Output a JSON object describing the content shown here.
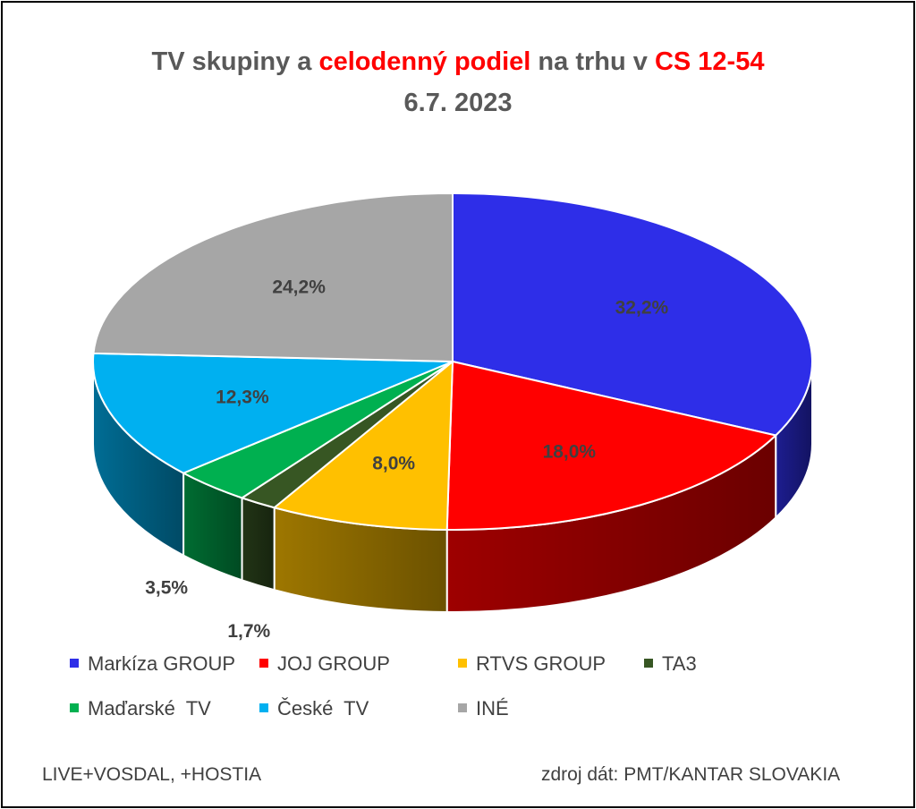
{
  "title": {
    "part1": "TV skupiny a ",
    "part2": "celodenný podiel",
    "part3": " na trhu v ",
    "part4": "CS 12-54",
    "line2": "6.7. 2023"
  },
  "footer": {
    "left": "LIVE+VOSDAL, +HOSTIA",
    "right": "zdroj dát: PMT/KANTAR SLOVAKIA"
  },
  "colors": {
    "highlight": "#ff0000",
    "title": "#595959",
    "label": "#404040"
  },
  "chart_data": {
    "type": "pie",
    "style": "3d",
    "title": "TV skupiny a celodenný podiel na trhu v CS 12-54 6.7. 2023",
    "legend_position": "bottom",
    "slices": [
      {
        "name": "Markíza GROUP",
        "value": 32.2,
        "label": "32,2%",
        "color": "#2e2ee8"
      },
      {
        "name": "JOJ GROUP",
        "value": 18.0,
        "label": "18,0%",
        "color": "#ff0000"
      },
      {
        "name": "RTVS GROUP",
        "value": 8.0,
        "label": "8,0%",
        "color": "#ffc000"
      },
      {
        "name": "TA3",
        "value": 1.7,
        "label": "1,7%",
        "color": "#375623"
      },
      {
        "name": "Maďarské  TV",
        "value": 3.5,
        "label": "3,5%",
        "color": "#00b050"
      },
      {
        "name": "České  TV",
        "value": 12.3,
        "label": "12,3%",
        "color": "#00b0f0"
      },
      {
        "name": "INÉ",
        "value": 24.2,
        "label": "24,2%",
        "color": "#a6a6a6"
      }
    ]
  }
}
